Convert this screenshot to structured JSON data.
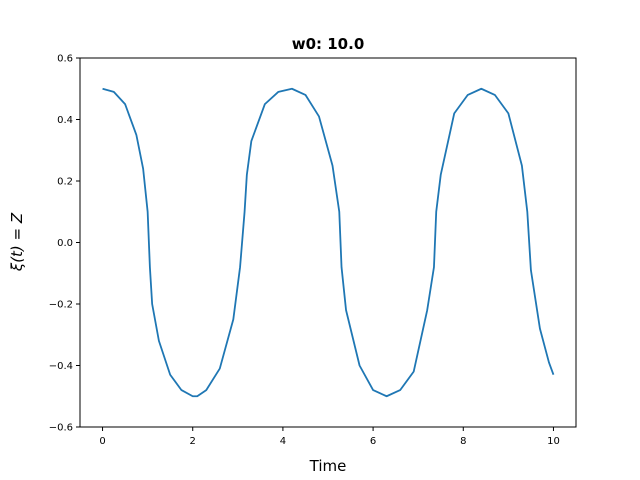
{
  "chart_data": {
    "type": "line",
    "title": "w0: 10.0",
    "xlabel": "Time",
    "ylabel": "ξ(t) = Z",
    "xlim": [
      -0.5,
      10.5
    ],
    "ylim": [
      -0.6,
      0.6
    ],
    "xticks": [
      0,
      2,
      4,
      6,
      8,
      10
    ],
    "xtick_labels": [
      "0",
      "2",
      "4",
      "6",
      "8",
      "10"
    ],
    "yticks": [
      -0.6,
      -0.4,
      -0.2,
      0.0,
      0.2,
      0.4,
      0.6
    ],
    "ytick_labels": [
      "−0.6",
      "−0.4",
      "−0.2",
      "0.0",
      "0.2",
      "0.4",
      "0.6"
    ],
    "grid": false,
    "series": [
      {
        "color": "#1f77b4",
        "x": [
          0,
          0.25,
          0.5,
          0.75,
          0.9,
          1.0,
          1.05,
          1.1,
          1.25,
          1.5,
          1.75,
          2.0,
          2.1,
          2.3,
          2.6,
          2.9,
          3.05,
          3.15,
          3.2,
          3.3,
          3.6,
          3.9,
          4.2,
          4.5,
          4.8,
          5.1,
          5.25,
          5.3,
          5.4,
          5.7,
          6.0,
          6.3,
          6.6,
          6.9,
          7.2,
          7.35,
          7.4,
          7.5,
          7.8,
          8.1,
          8.4,
          8.7,
          9.0,
          9.3,
          9.42,
          9.5,
          9.7,
          9.9,
          10.0
        ],
        "y": [
          0.5,
          0.49,
          0.45,
          0.35,
          0.24,
          0.1,
          -0.08,
          -0.2,
          -0.32,
          -0.43,
          -0.48,
          -0.5,
          -0.5,
          -0.48,
          -0.41,
          -0.25,
          -0.08,
          0.1,
          0.22,
          0.33,
          0.45,
          0.49,
          0.5,
          0.48,
          0.41,
          0.25,
          0.1,
          -0.08,
          -0.22,
          -0.4,
          -0.48,
          -0.5,
          -0.48,
          -0.42,
          -0.22,
          -0.08,
          0.1,
          0.22,
          0.42,
          0.48,
          0.5,
          0.48,
          0.42,
          0.25,
          0.1,
          -0.09,
          -0.28,
          -0.39,
          -0.43
        ]
      }
    ]
  }
}
